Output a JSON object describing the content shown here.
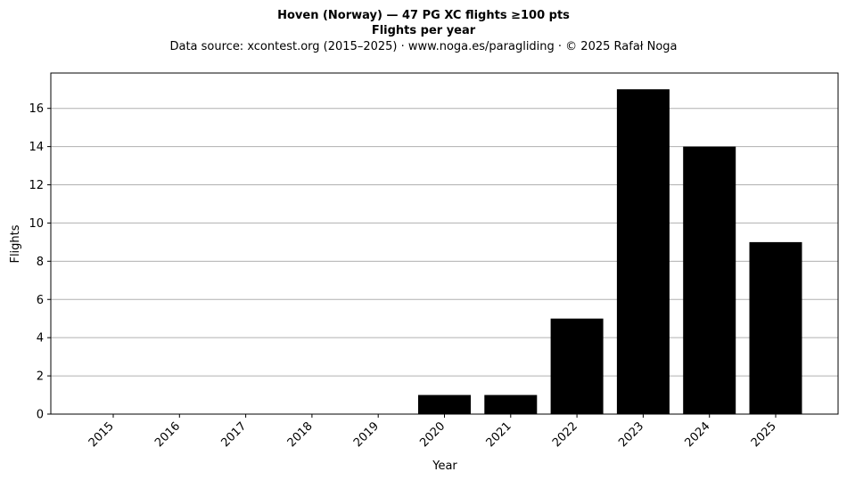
{
  "chart_data": {
    "type": "bar",
    "title": "Hoven (Norway)  —  47 PG XC flights ≥100 pts",
    "subtitle": "Flights per year",
    "source_note": "Data source: xcontest.org (2015–2025)  ·  www.noga.es/paragliding  ·  © 2025 Rafał Noga",
    "xlabel": "Year",
    "ylabel": "Flights",
    "categories": [
      "2015",
      "2016",
      "2017",
      "2018",
      "2019",
      "2020",
      "2021",
      "2022",
      "2023",
      "2024",
      "2025"
    ],
    "values": [
      0,
      0,
      0,
      0,
      0,
      1,
      1,
      5,
      17,
      14,
      9
    ],
    "ylim": [
      0,
      17.85
    ],
    "yticks": [
      0,
      2,
      4,
      6,
      8,
      10,
      12,
      14,
      16
    ],
    "grid": "horizontal",
    "bar_color": "#000000",
    "grid_color": "#b0b0b0"
  }
}
